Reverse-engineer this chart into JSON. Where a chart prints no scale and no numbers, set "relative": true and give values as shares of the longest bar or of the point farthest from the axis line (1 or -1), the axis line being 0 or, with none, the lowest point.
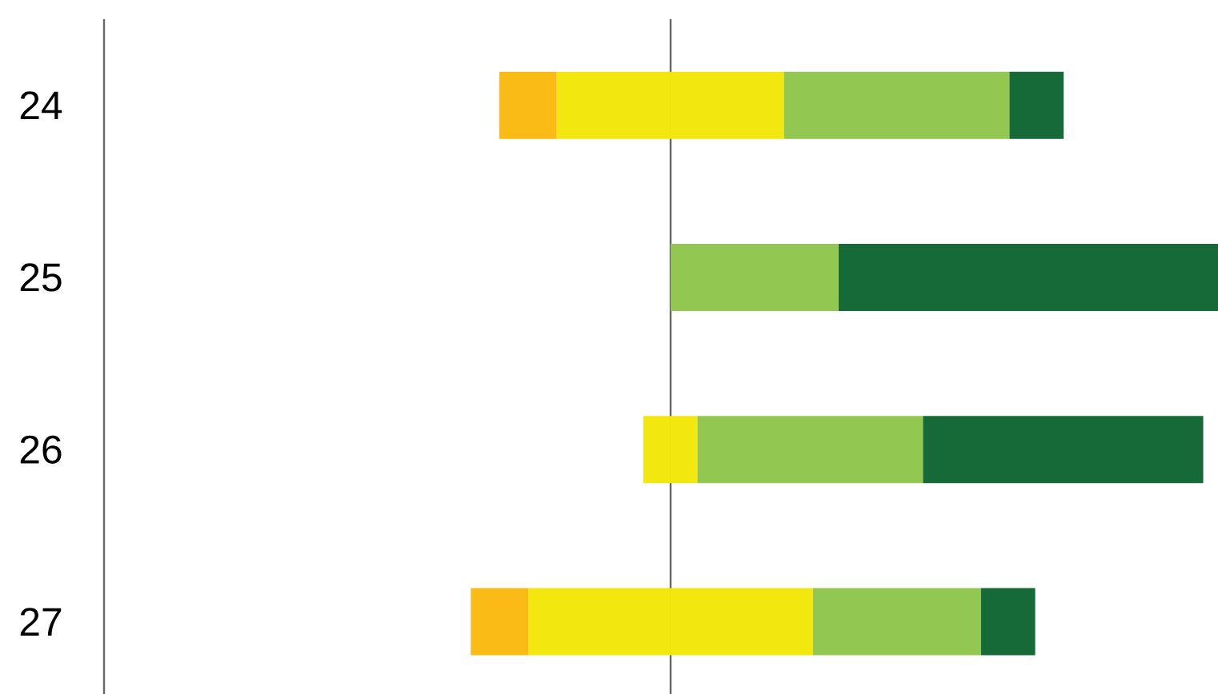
{
  "chart_data": {
    "type": "bar",
    "orientation": "horizontal",
    "relative": true,
    "stacked": true,
    "tick_labels": "y",
    "categories": [
      "24",
      "25",
      "26",
      "27"
    ],
    "series": [
      {
        "color": "#f2e70f",
        "values": [
          -0.208,
          null,
          -0.05,
          -0.26
        ]
      },
      {
        "color": "#fbbb16",
        "values": [
          -0.105,
          null,
          null,
          -0.105
        ]
      },
      {
        "color": "#f2e70f",
        "values": [
          0.207,
          null,
          0.049,
          0.26
        ]
      },
      {
        "color": "#92c852",
        "values": [
          0.412,
          0.307,
          0.412,
          0.307
        ]
      },
      {
        "color": "#156a37",
        "values": [
          0.099,
          0.693,
          0.512,
          0.099
        ]
      }
    ]
  }
}
